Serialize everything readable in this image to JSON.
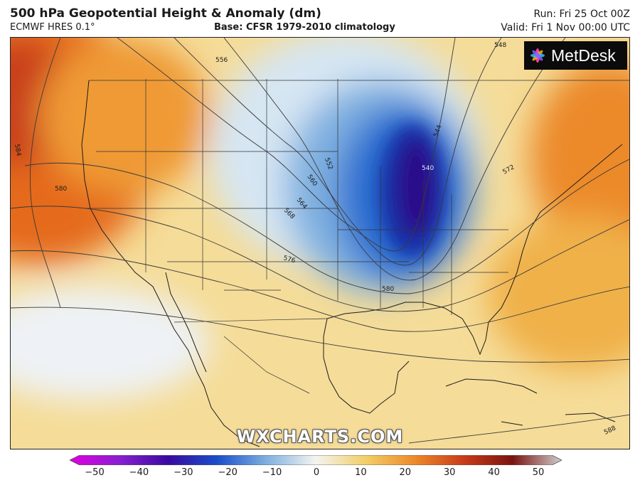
{
  "header": {
    "title": "500 hPa Geopotential Height & Anomaly (dm)",
    "model": "ECMWF HRES 0.1°",
    "base": "Base: CFSR 1979-2010 climatology",
    "run": "Run: Fri 25 Oct 00Z",
    "valid": "Valid: Fri 1 Nov 00:00 UTC"
  },
  "logo": {
    "text": "MetDesk"
  },
  "watermark": "WXCHARTS.COM",
  "contour_labels": [
    "556",
    "548",
    "584",
    "580",
    "552",
    "560",
    "564",
    "568",
    "576",
    "580",
    "544",
    "540",
    "572",
    "588"
  ],
  "colorbar": {
    "ticks": [
      "−50",
      "−40",
      "−30",
      "−20",
      "−10",
      "0",
      "10",
      "20",
      "30",
      "40",
      "50"
    ],
    "stops": [
      {
        "value": -50,
        "color": "#e000e0"
      },
      {
        "value": -40,
        "color": "#8a1fd0"
      },
      {
        "value": -30,
        "color": "#3a0aa0"
      },
      {
        "value": -20,
        "color": "#1a4fc8"
      },
      {
        "value": -10,
        "color": "#7fb0e0"
      },
      {
        "value": 0,
        "color": "#f4f4f0"
      },
      {
        "value": 10,
        "color": "#f2cf6a"
      },
      {
        "value": 20,
        "color": "#ee8b2a"
      },
      {
        "value": 30,
        "color": "#c83c1a"
      },
      {
        "value": 40,
        "color": "#7a1410"
      },
      {
        "value": 50,
        "color": "#cfcfcf"
      }
    ]
  }
}
